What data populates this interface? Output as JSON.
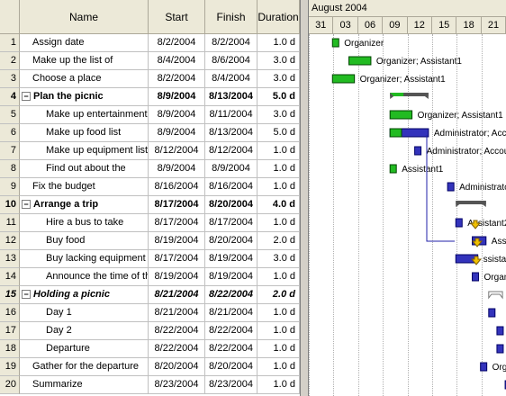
{
  "columns": {
    "name": "Name",
    "start": "Start",
    "finish": "Finish",
    "duration": "Duration"
  },
  "tasks": [
    {
      "id": "1",
      "name": "Assign date",
      "start": "8/2/2004",
      "finish": "8/2/2004",
      "duration": "1.0 d",
      "label": "Organizer"
    },
    {
      "id": "2",
      "name": "Make up the list of",
      "start": "8/4/2004",
      "finish": "8/6/2004",
      "duration": "3.0 d",
      "label": "Organizer; Assistant1"
    },
    {
      "id": "3",
      "name": "Choose a place",
      "start": "8/2/2004",
      "finish": "8/4/2004",
      "duration": "3.0 d",
      "label": "Organizer; Assistant1"
    },
    {
      "id": "4",
      "name": "Plan the picnic",
      "start": "8/9/2004",
      "finish": "8/13/2004",
      "duration": "5.0 d",
      "label": ""
    },
    {
      "id": "5",
      "name": "Make up entertainment",
      "start": "8/9/2004",
      "finish": "8/11/2004",
      "duration": "3.0 d",
      "label": "Organizer; Assistant1"
    },
    {
      "id": "6",
      "name": "Make up food list",
      "start": "8/9/2004",
      "finish": "8/13/2004",
      "duration": "5.0 d",
      "label": "Administrator; Acco"
    },
    {
      "id": "7",
      "name": "Make up equipment list",
      "start": "8/12/2004",
      "finish": "8/12/2004",
      "duration": "1.0 d",
      "label": "Administrator; Accou"
    },
    {
      "id": "8",
      "name": "Find out about the",
      "start": "8/9/2004",
      "finish": "8/9/2004",
      "duration": "1.0 d",
      "label": "Assistant1"
    },
    {
      "id": "9",
      "name": "Fix the budget",
      "start": "8/16/2004",
      "finish": "8/16/2004",
      "duration": "1.0 d",
      "label": "Administrato"
    },
    {
      "id": "10",
      "name": "Arrange a trip",
      "start": "8/17/2004",
      "finish": "8/20/2004",
      "duration": "4.0 d",
      "label": ""
    },
    {
      "id": "11",
      "name": "Hire a bus to take",
      "start": "8/17/2004",
      "finish": "8/17/2004",
      "duration": "1.0 d",
      "label": "Assistant2"
    },
    {
      "id": "12",
      "name": "Buy food",
      "start": "8/19/2004",
      "finish": "8/20/2004",
      "duration": "2.0 d",
      "label": "Assis"
    },
    {
      "id": "13",
      "name": "Buy lacking equipment",
      "start": "8/17/2004",
      "finish": "8/19/2004",
      "duration": "3.0 d",
      "label": "ssista"
    },
    {
      "id": "14",
      "name": "Announce the time of the",
      "start": "8/19/2004",
      "finish": "8/19/2004",
      "duration": "1.0 d",
      "label": "Organi"
    },
    {
      "id": "15",
      "name": "Holding a picnic",
      "start": "8/21/2004",
      "finish": "8/22/2004",
      "duration": "2.0 d",
      "label": ""
    },
    {
      "id": "16",
      "name": "Day 1",
      "start": "8/21/2004",
      "finish": "8/21/2004",
      "duration": "1.0 d",
      "label": ""
    },
    {
      "id": "17",
      "name": "Day 2",
      "start": "8/22/2004",
      "finish": "8/22/2004",
      "duration": "1.0 d",
      "label": ""
    },
    {
      "id": "18",
      "name": "Departure",
      "start": "8/22/2004",
      "finish": "8/22/2004",
      "duration": "1.0 d",
      "label": ""
    },
    {
      "id": "19",
      "name": "Gather for the departure",
      "start": "8/20/2004",
      "finish": "8/20/2004",
      "duration": "1.0 d",
      "label": "Orga"
    },
    {
      "id": "20",
      "name": "Summarize",
      "start": "8/23/2004",
      "finish": "8/23/2004",
      "duration": "1.0 d",
      "label": ""
    }
  ],
  "timescale": {
    "month": "August 2004",
    "days": [
      "31",
      "03",
      "06",
      "09",
      "12",
      "15",
      "18",
      "21"
    ]
  },
  "colors": {
    "done": "#22bb22",
    "todo": "#3333bb",
    "summary": "#555555",
    "milestone": "#f0c000"
  }
}
